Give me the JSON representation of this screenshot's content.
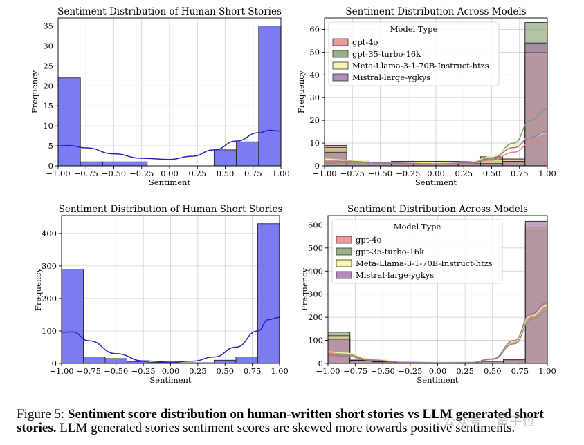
{
  "chart_data": [
    {
      "type": "histogram",
      "title": "Sentiment Distribution of Human Short Stories",
      "xlabel": "Sentiment",
      "ylabel": "Frequency",
      "xlim": [
        -1.0,
        1.0
      ],
      "ylim": [
        0,
        37
      ],
      "xticks": [
        -1.0,
        -0.75,
        -0.5,
        -0.25,
        0.0,
        0.25,
        0.5,
        0.75,
        1.0
      ],
      "xtick_labels": [
        "−1.00",
        "−0.75",
        "−0.50",
        "−0.25",
        "0.00",
        "0.25",
        "0.50",
        "0.75",
        "1.00"
      ],
      "yticks": [
        0,
        5,
        10,
        15,
        20,
        25,
        30,
        35
      ],
      "bin_edges": [
        -1.0,
        -0.8,
        -0.6,
        -0.4,
        -0.2,
        0.0,
        0.2,
        0.4,
        0.6,
        0.8,
        1.0
      ],
      "series": [
        {
          "name": "Human",
          "color": "#6a6af0",
          "values": [
            22,
            1,
            1,
            1,
            0,
            0,
            0,
            4,
            6,
            35
          ],
          "kde": [
            [
              -1.0,
              5.0
            ],
            [
              -0.9,
              5.1
            ],
            [
              -0.75,
              4.5
            ],
            [
              -0.5,
              3.0
            ],
            [
              -0.25,
              1.9
            ],
            [
              0.0,
              1.6
            ],
            [
              0.2,
              2.4
            ],
            [
              0.4,
              4.0
            ],
            [
              0.6,
              6.2
            ],
            [
              0.8,
              8.3
            ],
            [
              0.9,
              8.9
            ],
            [
              1.0,
              8.7
            ]
          ]
        }
      ]
    },
    {
      "type": "histogram",
      "title": "Sentiment Distribution Across Models",
      "xlabel": "Sentiment",
      "ylabel": "Frequency",
      "xlim": [
        -1.0,
        1.0
      ],
      "ylim": [
        0,
        65
      ],
      "xticks": [
        -1.0,
        -0.75,
        -0.5,
        -0.25,
        0.0,
        0.25,
        0.5,
        0.75,
        1.0
      ],
      "xtick_labels": [
        "−1.00",
        "−0.75",
        "−0.50",
        "−0.25",
        "0.00",
        "0.25",
        "0.50",
        "0.75",
        "1.00"
      ],
      "yticks": [
        0,
        10,
        20,
        30,
        40,
        50,
        60
      ],
      "legend_title": "Model Type",
      "legend_position": "upper-left",
      "bin_edges": [
        -1.0,
        -0.8,
        -0.6,
        -0.4,
        -0.2,
        0.0,
        0.2,
        0.4,
        0.6,
        0.8,
        1.0
      ],
      "series": [
        {
          "name": "gpt-4o",
          "color": "#e8807f",
          "values": [
            9,
            2,
            1,
            1,
            1,
            1,
            1,
            2,
            3,
            48
          ],
          "kde": [
            [
              -1.0,
              2
            ],
            [
              -0.8,
              2.2
            ],
            [
              -0.5,
              1.5
            ],
            [
              0.0,
              0.8
            ],
            [
              0.3,
              1.2
            ],
            [
              0.5,
              2.5
            ],
            [
              0.7,
              6
            ],
            [
              0.85,
              10
            ],
            [
              1.0,
              12.5
            ]
          ]
        },
        {
          "name": "gpt-35-turbo-16k",
          "color": "#7f9f6a",
          "values": [
            7,
            2,
            1,
            2,
            1,
            2,
            1,
            4,
            2,
            63
          ],
          "kde": [
            [
              -1.0,
              1
            ],
            [
              -0.8,
              1.4
            ],
            [
              -0.5,
              1.0
            ],
            [
              0.0,
              0.8
            ],
            [
              0.3,
              1.2
            ],
            [
              0.5,
              3
            ],
            [
              0.7,
              10
            ],
            [
              0.85,
              20
            ],
            [
              1.0,
              25
            ]
          ]
        },
        {
          "name": "Meta-Llama-3-1-70B-Instruct-htzs",
          "color": "#f4f29a",
          "values": [
            8,
            2,
            1,
            1,
            2,
            1,
            1,
            3,
            3,
            50
          ],
          "kde": [
            [
              -1.0,
              3
            ],
            [
              -0.8,
              2.5
            ],
            [
              -0.5,
              1.6
            ],
            [
              0.0,
              1.2
            ],
            [
              0.3,
              1.8
            ],
            [
              0.5,
              4
            ],
            [
              0.7,
              9
            ],
            [
              0.85,
              12.5
            ],
            [
              1.0,
              14.5
            ]
          ]
        },
        {
          "name": "Mistral-large-ygkys",
          "color": "#a070a8",
          "values": [
            6,
            2,
            1,
            1,
            1,
            1,
            2,
            1,
            2,
            54
          ],
          "kde": [
            [
              -1.0,
              1.5
            ],
            [
              -0.8,
              2
            ],
            [
              -0.5,
              1.4
            ],
            [
              0.0,
              0.9
            ],
            [
              0.3,
              1.3
            ],
            [
              0.5,
              3.5
            ],
            [
              0.7,
              8
            ],
            [
              0.85,
              12.5
            ],
            [
              1.0,
              15
            ]
          ]
        }
      ]
    },
    {
      "type": "histogram",
      "title": "Sentiment Distribution of Human Short Stories",
      "xlabel": "Sentiment",
      "ylabel": "Frequency",
      "xlim": [
        -1.0,
        1.0
      ],
      "ylim": [
        0,
        455
      ],
      "xticks": [
        -1.0,
        -0.75,
        -0.5,
        -0.25,
        0.0,
        0.25,
        0.5,
        0.75,
        1.0
      ],
      "xtick_labels": [
        "−1.00",
        "−0.75",
        "−0.50",
        "−0.25",
        "0.00",
        "0.25",
        "0.50",
        "0.75",
        "1.00"
      ],
      "yticks": [
        0,
        100,
        200,
        300,
        400
      ],
      "bin_edges": [
        -1.0,
        -0.8,
        -0.6,
        -0.4,
        -0.2,
        0.0,
        0.2,
        0.4,
        0.6,
        0.8,
        1.0
      ],
      "series": [
        {
          "name": "Human",
          "color": "#6a6af0",
          "values": [
            290,
            20,
            15,
            5,
            3,
            2,
            2,
            10,
            20,
            430
          ],
          "kde": [
            [
              -1.0,
              96
            ],
            [
              -0.9,
              97
            ],
            [
              -0.75,
              70
            ],
            [
              -0.5,
              30
            ],
            [
              -0.25,
              8
            ],
            [
              0.0,
              4
            ],
            [
              0.2,
              7
            ],
            [
              0.4,
              20
            ],
            [
              0.6,
              50
            ],
            [
              0.8,
              100
            ],
            [
              0.9,
              135
            ],
            [
              1.0,
              142
            ]
          ]
        }
      ]
    },
    {
      "type": "histogram",
      "title": "Sentiment Distribution Across Models",
      "xlabel": "Sentiment",
      "ylabel": "Frequency",
      "xlim": [
        -1.0,
        1.0
      ],
      "ylim": [
        0,
        640
      ],
      "xticks": [
        -1.0,
        -0.75,
        -0.5,
        -0.25,
        0.0,
        0.25,
        0.5,
        0.75,
        1.0
      ],
      "xtick_labels": [
        "−1.00",
        "−0.75",
        "−0.50",
        "−0.25",
        "0.00",
        "0.25",
        "0.50",
        "0.75",
        "1.00"
      ],
      "yticks": [
        0,
        100,
        200,
        300,
        400,
        500,
        600
      ],
      "legend_title": "Model Type",
      "legend_position": "upper-left",
      "bin_edges": [
        -1.0,
        -0.8,
        -0.6,
        -0.4,
        -0.2,
        0.0,
        0.2,
        0.4,
        0.6,
        0.8,
        1.0
      ],
      "series": [
        {
          "name": "gpt-4o",
          "color": "#e8807f",
          "values": [
            110,
            15,
            8,
            5,
            3,
            2,
            3,
            10,
            15,
            575
          ],
          "kde": [
            [
              -1.0,
              45
            ],
            [
              -0.85,
              40
            ],
            [
              -0.6,
              18
            ],
            [
              -0.3,
              6
            ],
            [
              0.0,
              4
            ],
            [
              0.3,
              5
            ],
            [
              0.5,
              20
            ],
            [
              0.7,
              90
            ],
            [
              0.85,
              200
            ],
            [
              1.0,
              245
            ]
          ]
        },
        {
          "name": "gpt-35-turbo-16k",
          "color": "#7f9f6a",
          "values": [
            135,
            10,
            5,
            3,
            2,
            2,
            2,
            8,
            12,
            590
          ],
          "kde": [
            [
              -1.0,
              40
            ],
            [
              -0.85,
              38
            ],
            [
              -0.6,
              15
            ],
            [
              -0.3,
              5
            ],
            [
              0.0,
              3
            ],
            [
              0.3,
              4
            ],
            [
              0.5,
              18
            ],
            [
              0.7,
              85
            ],
            [
              0.85,
              190
            ],
            [
              1.0,
              225
            ]
          ]
        },
        {
          "name": "Meta-Llama-3-1-70B-Instruct-htzs",
          "color": "#f4f29a",
          "values": [
            120,
            12,
            6,
            4,
            3,
            3,
            3,
            9,
            16,
            600
          ],
          "kde": [
            [
              -1.0,
              50
            ],
            [
              -0.85,
              45
            ],
            [
              -0.6,
              20
            ],
            [
              -0.3,
              7
            ],
            [
              0.0,
              4
            ],
            [
              0.3,
              5
            ],
            [
              0.5,
              22
            ],
            [
              0.7,
              95
            ],
            [
              0.85,
              205
            ],
            [
              1.0,
              250
            ]
          ]
        },
        {
          "name": "Mistral-large-ygkys",
          "color": "#a070a8",
          "values": [
            105,
            13,
            7,
            4,
            2,
            2,
            3,
            9,
            18,
            615
          ],
          "kde": [
            [
              -1.0,
              35
            ],
            [
              -0.85,
              32
            ],
            [
              -0.6,
              14
            ],
            [
              -0.3,
              5
            ],
            [
              0.0,
              3
            ],
            [
              0.3,
              4
            ],
            [
              0.5,
              20
            ],
            [
              0.7,
              100
            ],
            [
              0.85,
              215
            ],
            [
              1.0,
              262
            ]
          ]
        }
      ]
    }
  ],
  "caption": {
    "prefix": "Figure 5: ",
    "bold": "Sentiment score distribution on human-written short stories vs LLM generated short stories.",
    "rest": " LLM generated stories sentiment scores are skewed more towards positive sentiments."
  },
  "watermark": "公众号 · 量子位"
}
